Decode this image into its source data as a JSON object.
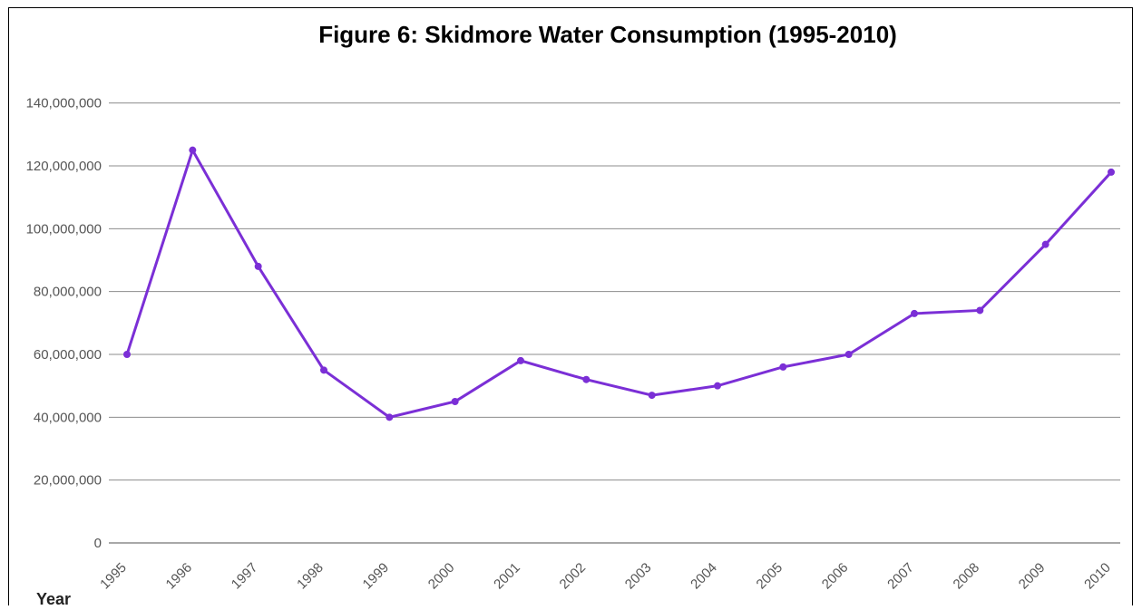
{
  "chart_data": {
    "type": "line",
    "title": "Figure 6: Skidmore Water Consumption (1995-2010)",
    "xlabel": "Year",
    "ylabel": "",
    "x": [
      1995,
      1996,
      1997,
      1998,
      1999,
      2000,
      2001,
      2002,
      2003,
      2004,
      2005,
      2006,
      2007,
      2008,
      2009,
      2010
    ],
    "series": [
      {
        "values": [
          60000000,
          125000000,
          88000000,
          55000000,
          40000000,
          45000000,
          58000000,
          52000000,
          47000000,
          50000000,
          56000000,
          60000000,
          73000000,
          74000000,
          95000000,
          118000000
        ]
      }
    ],
    "yticks": [
      {
        "value": 140000000,
        "label": "140,000,000"
      },
      {
        "value": 120000000,
        "label": "120,000,000"
      },
      {
        "value": 100000000,
        "label": "100,000,000"
      },
      {
        "value": 80000000,
        "label": "80,000,000"
      },
      {
        "value": 60000000,
        "label": "60,000,000"
      },
      {
        "value": 40000000,
        "label": "40,000,000"
      },
      {
        "value": 20000000,
        "label": "20,000,000"
      },
      {
        "value": 0,
        "label": "0"
      }
    ],
    "ylim": [
      0,
      150000000
    ],
    "grid": true,
    "legend": "none",
    "colors": {
      "line": "#7b2fd6",
      "grid": "#8c8c8c",
      "axis": "#444444",
      "text": "#000000"
    }
  }
}
